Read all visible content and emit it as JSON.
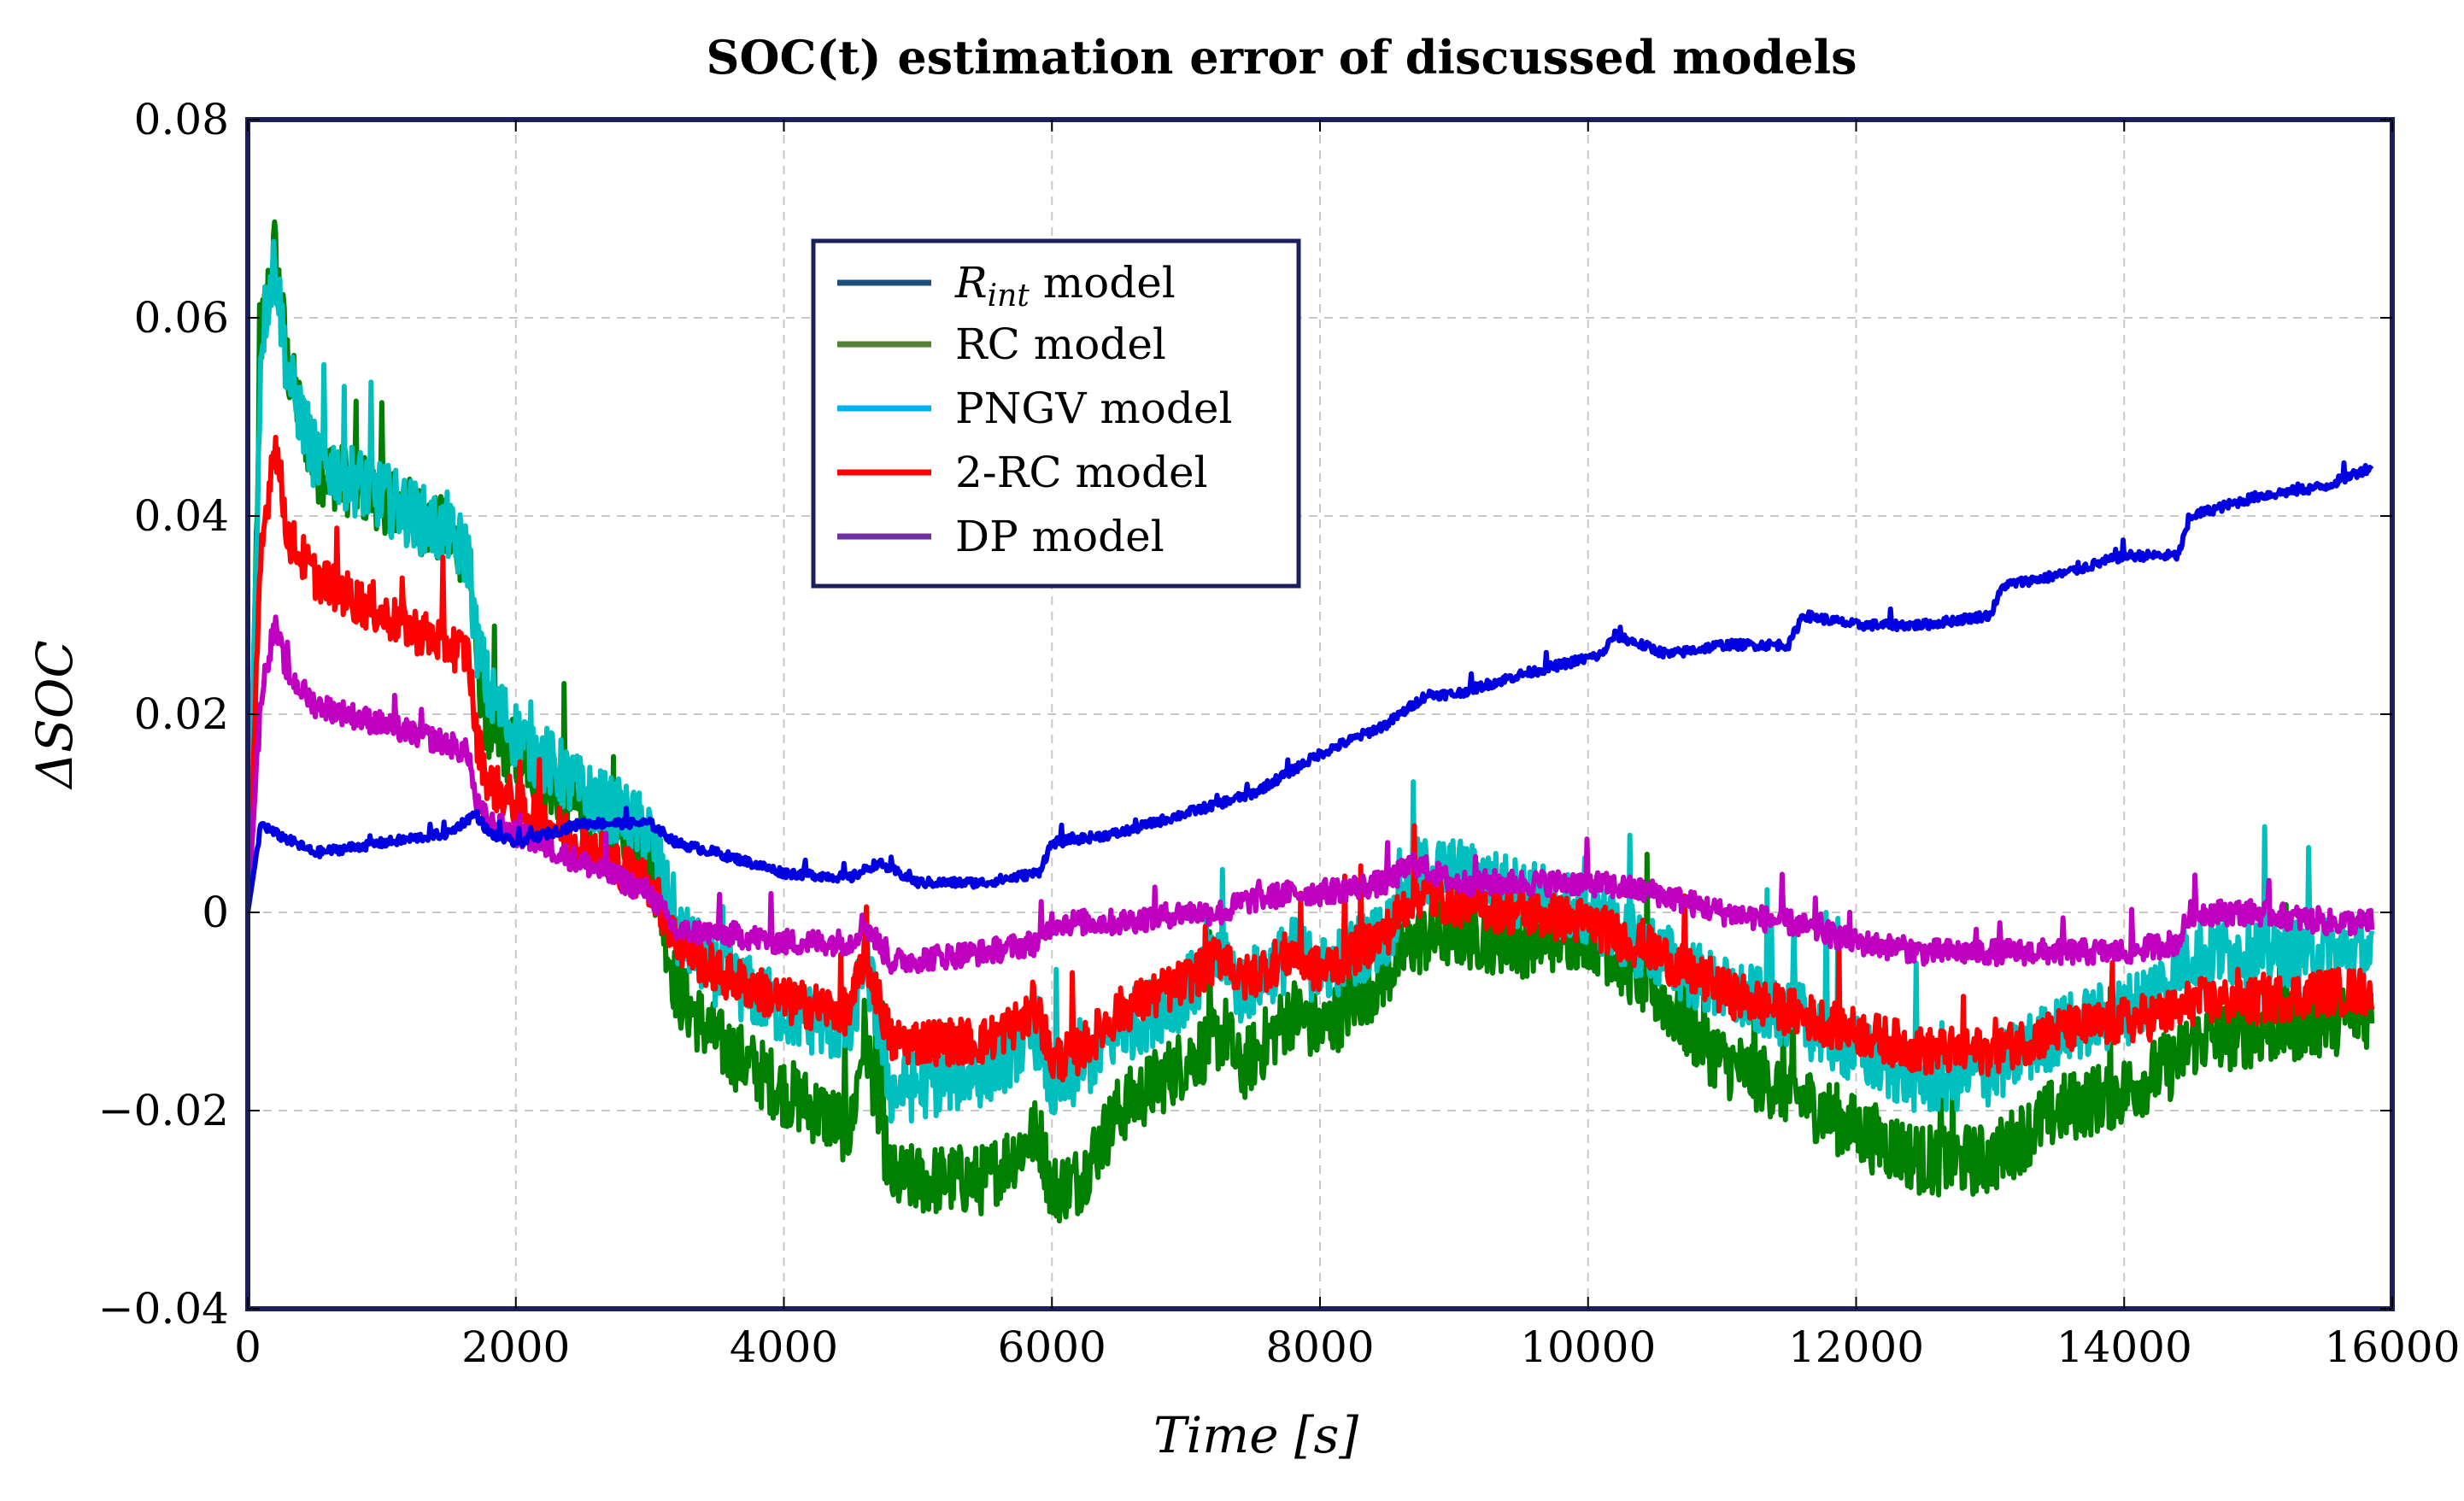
{
  "chart_data": {
    "type": "line",
    "title": "SOC(t) estimation error of discussed models",
    "xlabel": "Time [s]",
    "ylabel": "ΔSOC",
    "xlim": [
      0,
      16000
    ],
    "ylim": [
      -0.04,
      0.08
    ],
    "xticks": [
      0,
      2000,
      4000,
      6000,
      8000,
      10000,
      12000,
      14000,
      16000
    ],
    "xtick_labels": [
      "0",
      "2000",
      "4000",
      "6000",
      "8000",
      "10000",
      "12000",
      "14000",
      "16000"
    ],
    "yticks": [
      -0.04,
      -0.02,
      0,
      0.02,
      0.04,
      0.06,
      0.08
    ],
    "ytick_labels": [
      "−0.04",
      "−0.02",
      "0",
      "0.02",
      "0.04",
      "0.06",
      "0.08"
    ],
    "grid": true,
    "legend_position": "top-center",
    "legend": [
      {
        "name_base": "R",
        "name_sub": "int",
        "name_suffix": " model",
        "color": "#1f4e79"
      },
      {
        "name": "RC model",
        "color": "#548235"
      },
      {
        "name": "PNGV model",
        "color": "#00b0f0"
      },
      {
        "name": "2-RC model",
        "color": "#ff0000"
      },
      {
        "name": "DP model",
        "color": "#7030a0"
      }
    ],
    "series": [
      {
        "name": "RC model",
        "color": "#008000",
        "noise": 0.0045,
        "x": [
          0,
          100,
          200,
          300,
          500,
          1000,
          1500,
          1650,
          1700,
          1800,
          2000,
          2500,
          3000,
          3200,
          3500,
          4000,
          4500,
          4600,
          4800,
          5500,
          5900,
          6000,
          6200,
          6500,
          7000,
          7300,
          7400,
          7800,
          8000,
          8500,
          8700,
          9000,
          9500,
          10000,
          10500,
          11000,
          11500,
          12000,
          12500,
          13000,
          13500,
          14000,
          14400,
          14500,
          15000,
          15500,
          15850
        ],
        "y": [
          0,
          0.058,
          0.067,
          0.055,
          0.045,
          0.042,
          0.038,
          0.036,
          0.026,
          0.018,
          0.016,
          0.01,
          0.006,
          -0.008,
          -0.013,
          -0.018,
          -0.022,
          -0.012,
          -0.027,
          -0.027,
          -0.022,
          -0.028,
          -0.027,
          -0.02,
          -0.015,
          -0.012,
          -0.016,
          -0.01,
          -0.012,
          -0.006,
          -0.003,
          -0.002,
          -0.003,
          -0.002,
          -0.008,
          -0.015,
          -0.018,
          -0.022,
          -0.025,
          -0.025,
          -0.02,
          -0.018,
          -0.015,
          -0.013,
          -0.012,
          -0.011,
          -0.01
        ]
      },
      {
        "name": "PNGV model",
        "color": "#00bfbf",
        "noise": 0.0045,
        "x": [
          0,
          100,
          200,
          300,
          500,
          1000,
          1500,
          1650,
          1700,
          1800,
          2000,
          2500,
          3000,
          3200,
          3500,
          4000,
          4500,
          4600,
          4800,
          5500,
          5900,
          6000,
          6200,
          6500,
          7000,
          7300,
          7400,
          7800,
          8000,
          8500,
          8700,
          9000,
          9500,
          10000,
          10500,
          11000,
          11500,
          12000,
          12500,
          13000,
          13500,
          14000,
          14400,
          14500,
          15000,
          15500,
          15850
        ],
        "y": [
          0,
          0.058,
          0.066,
          0.054,
          0.046,
          0.042,
          0.038,
          0.036,
          0.028,
          0.022,
          0.018,
          0.012,
          0.008,
          -0.002,
          -0.006,
          -0.01,
          -0.012,
          -0.004,
          -0.018,
          -0.016,
          -0.012,
          -0.018,
          -0.016,
          -0.012,
          -0.008,
          -0.004,
          -0.008,
          -0.004,
          -0.006,
          -0.002,
          0.004,
          0.004,
          0.002,
          0.0,
          -0.004,
          -0.008,
          -0.01,
          -0.014,
          -0.017,
          -0.016,
          -0.012,
          -0.01,
          -0.006,
          -0.004,
          -0.004,
          -0.004,
          -0.004
        ]
      },
      {
        "name": "2-RC model",
        "color": "#ff0000",
        "noise": 0.003,
        "x": [
          0,
          100,
          200,
          300,
          500,
          1000,
          1500,
          1650,
          1700,
          1800,
          2000,
          2500,
          3000,
          3200,
          3500,
          4000,
          4500,
          4600,
          4800,
          5500,
          5900,
          6000,
          6200,
          6500,
          7000,
          7300,
          7400,
          7800,
          8000,
          8500,
          8700,
          9000,
          9500,
          10000,
          10500,
          11000,
          11500,
          12000,
          12500,
          13000,
          13500,
          14000,
          14400,
          14500,
          15000,
          15500,
          15850
        ],
        "y": [
          0,
          0.036,
          0.048,
          0.038,
          0.034,
          0.03,
          0.027,
          0.026,
          0.018,
          0.013,
          0.011,
          0.007,
          0.003,
          -0.003,
          -0.006,
          -0.009,
          -0.01,
          -0.004,
          -0.013,
          -0.013,
          -0.01,
          -0.015,
          -0.014,
          -0.01,
          -0.007,
          -0.004,
          -0.007,
          -0.004,
          -0.006,
          -0.002,
          0.002,
          0.001,
          0.0,
          -0.001,
          -0.004,
          -0.008,
          -0.01,
          -0.012,
          -0.014,
          -0.014,
          -0.012,
          -0.011,
          -0.01,
          -0.009,
          -0.009,
          -0.008,
          -0.008
        ]
      },
      {
        "name": "DP model",
        "color": "#c000c0",
        "noise": 0.0016,
        "x": [
          0,
          100,
          200,
          300,
          500,
          1000,
          1500,
          1650,
          1700,
          1800,
          2000,
          2500,
          3000,
          3200,
          3500,
          4000,
          4500,
          4600,
          4800,
          5500,
          5900,
          6000,
          6200,
          6500,
          7000,
          7300,
          7400,
          7800,
          8000,
          8500,
          8700,
          9000,
          9500,
          10000,
          10500,
          11000,
          11500,
          12000,
          12500,
          13000,
          13500,
          14000,
          14400,
          14500,
          15000,
          15500,
          15850
        ],
        "y": [
          0,
          0.022,
          0.029,
          0.024,
          0.021,
          0.019,
          0.017,
          0.016,
          0.011,
          0.009,
          0.008,
          0.005,
          0.002,
          -0.002,
          -0.002,
          -0.003,
          -0.003,
          -0.001,
          -0.005,
          -0.004,
          -0.003,
          -0.001,
          -0.001,
          -0.001,
          0.0,
          0.0,
          0.001,
          0.002,
          0.002,
          0.003,
          0.005,
          0.003,
          0.003,
          0.003,
          0.002,
          0.0,
          -0.001,
          -0.003,
          -0.004,
          -0.004,
          -0.004,
          -0.004,
          -0.003,
          0.0,
          0.0,
          -0.001,
          -0.001
        ]
      },
      {
        "name": "Rint model",
        "color": "#0000e0",
        "noise": 0.0006,
        "x": [
          0,
          100,
          200,
          500,
          1000,
          1500,
          1700,
          1800,
          2000,
          2500,
          3000,
          3200,
          3500,
          4000,
          4500,
          4700,
          5000,
          5500,
          5900,
          6000,
          6500,
          7000,
          7500,
          8000,
          8500,
          8800,
          9000,
          9500,
          10100,
          10200,
          10600,
          11000,
          11500,
          11600,
          12000,
          12500,
          13000,
          13100,
          13500,
          14000,
          14400,
          14500,
          15000,
          15500,
          15850
        ],
        "y": [
          0,
          0.009,
          0.008,
          0.006,
          0.007,
          0.008,
          0.01,
          0.008,
          0.007,
          0.009,
          0.009,
          0.007,
          0.006,
          0.004,
          0.0035,
          0.005,
          0.003,
          0.003,
          0.004,
          0.007,
          0.008,
          0.01,
          0.012,
          0.016,
          0.019,
          0.022,
          0.022,
          0.024,
          0.026,
          0.028,
          0.026,
          0.027,
          0.027,
          0.03,
          0.029,
          0.029,
          0.03,
          0.033,
          0.034,
          0.036,
          0.036,
          0.04,
          0.042,
          0.043,
          0.045
        ]
      }
    ]
  }
}
